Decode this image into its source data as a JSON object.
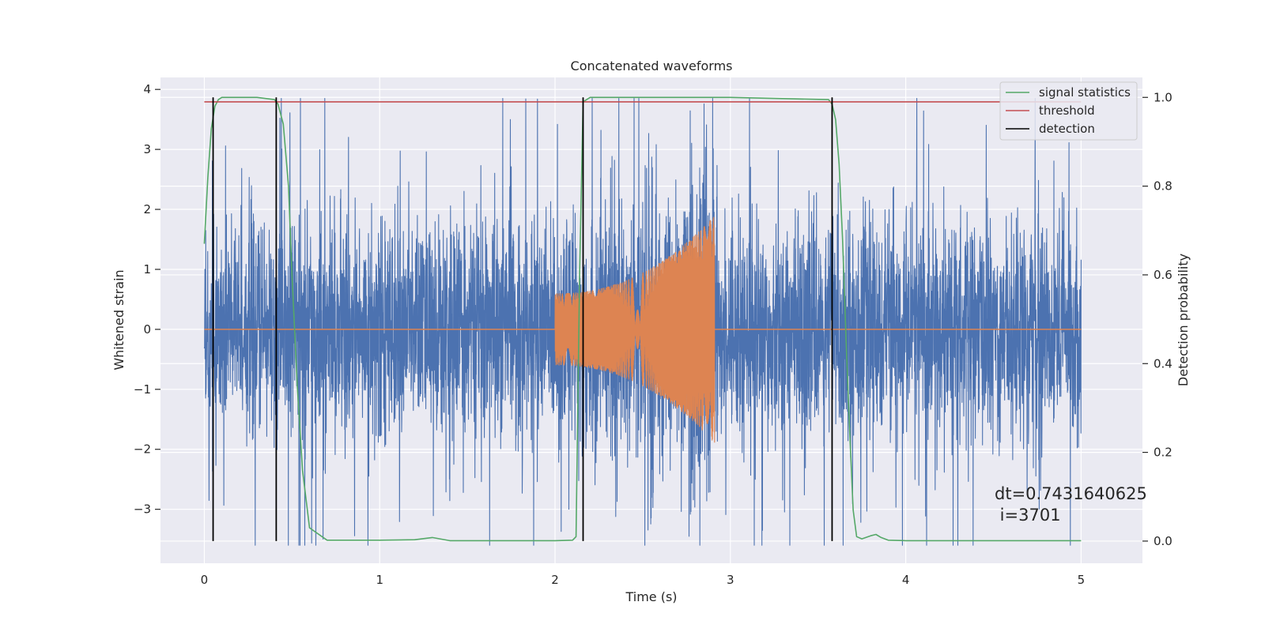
{
  "chart_data": {
    "type": "line",
    "title": "Concatenated waveforms",
    "xlabel": "Time (s)",
    "ylabel": "Whitened strain",
    "y2label": "Detection probability",
    "xlim": [
      -0.25,
      5.35
    ],
    "ylim": [
      -3.9,
      4.2
    ],
    "y2lim": [
      -0.05,
      1.045
    ],
    "x_ticks": [
      0,
      1,
      2,
      3,
      4,
      5
    ],
    "y_ticks": [
      -3,
      -2,
      -1,
      0,
      1,
      2,
      3,
      4
    ],
    "y2_ticks": [
      0.0,
      0.2,
      0.4,
      0.6,
      0.8,
      1.0
    ],
    "y2_tick_labels": [
      "0.0",
      "0.2",
      "0.4",
      "0.6",
      "0.8",
      "1.0"
    ],
    "y_tick_labels": [
      "−3",
      "−2",
      "−1",
      "0",
      "1",
      "2",
      "3",
      "4"
    ],
    "grid": true,
    "legend_position": "top-right",
    "legend": [
      "signal statistics",
      "threshold",
      "detection"
    ],
    "annotation": [
      "dt=0.7431640625",
      " i=3701"
    ],
    "colors": {
      "strain": "#4c72b0",
      "injection": "#dd8452",
      "signal_statistics": "#55a868",
      "threshold": "#c44e52",
      "detection": "#000000",
      "plot_bg": "#eaeaf2",
      "grid": "#ffffff"
    },
    "series": [
      {
        "name": "signal statistics",
        "axis": "right",
        "x": [
          0.0,
          0.02,
          0.04,
          0.06,
          0.08,
          0.1,
          0.2,
          0.3,
          0.4,
          0.42,
          0.45,
          0.48,
          0.5,
          0.53,
          0.56,
          0.6,
          0.7,
          1.0,
          1.2,
          1.3,
          1.4,
          1.6,
          2.0,
          2.1,
          2.12,
          2.14,
          2.16,
          2.2,
          2.5,
          3.0,
          3.56,
          3.58,
          3.6,
          3.62,
          3.64,
          3.66,
          3.68,
          3.7,
          3.72,
          3.75,
          3.8,
          3.83,
          3.86,
          3.9,
          4.0,
          5.0
        ],
        "values": [
          0.67,
          0.82,
          0.93,
          0.98,
          0.995,
          1.0,
          1.0,
          1.0,
          0.995,
          0.985,
          0.94,
          0.8,
          0.6,
          0.35,
          0.16,
          0.03,
          0.002,
          0.002,
          0.003,
          0.008,
          0.001,
          0.001,
          0.001,
          0.002,
          0.01,
          0.6,
          0.99,
          1.0,
          1.0,
          1.0,
          0.995,
          0.985,
          0.95,
          0.85,
          0.68,
          0.45,
          0.25,
          0.07,
          0.01,
          0.005,
          0.012,
          0.015,
          0.008,
          0.002,
          0.001,
          0.001
        ]
      },
      {
        "name": "threshold",
        "axis": "right",
        "x": [
          0.0,
          5.0
        ],
        "values": [
          0.99,
          0.99
        ]
      }
    ],
    "detections": [
      0.05,
      0.41,
      2.16,
      3.58
    ],
    "strain_x_range": [
      0.0,
      5.0
    ],
    "injection": {
      "start": 2.0,
      "end": 2.91,
      "start_amplitude": 0.6,
      "end_amplitude": 1.9
    }
  }
}
